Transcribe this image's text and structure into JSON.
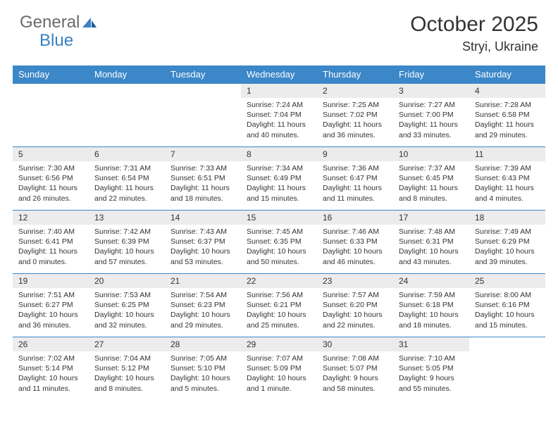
{
  "brand": {
    "part1": "General",
    "part2": "Blue"
  },
  "title": "October 2025",
  "location": "Stryi, Ukraine",
  "colors": {
    "header_bg": "#3b87c8",
    "header_fg": "#ffffff",
    "daynum_bg": "#ececec",
    "border": "#3b87c8",
    "text": "#333333",
    "logo_gray": "#6a6a6a",
    "logo_blue": "#3a7fc4",
    "page_bg": "#ffffff"
  },
  "typography": {
    "title_fontsize": 30,
    "location_fontsize": 18,
    "logo_fontsize": 24,
    "weekday_fontsize": 13,
    "daynum_fontsize": 12,
    "body_fontsize": 10.5
  },
  "weekdays": [
    "Sunday",
    "Monday",
    "Tuesday",
    "Wednesday",
    "Thursday",
    "Friday",
    "Saturday"
  ],
  "weeks": [
    [
      {
        "n": "",
        "sr": "",
        "ss": "",
        "dl": ""
      },
      {
        "n": "",
        "sr": "",
        "ss": "",
        "dl": ""
      },
      {
        "n": "",
        "sr": "",
        "ss": "",
        "dl": ""
      },
      {
        "n": "1",
        "sr": "7:24 AM",
        "ss": "7:04 PM",
        "dl": "11 hours and 40 minutes."
      },
      {
        "n": "2",
        "sr": "7:25 AM",
        "ss": "7:02 PM",
        "dl": "11 hours and 36 minutes."
      },
      {
        "n": "3",
        "sr": "7:27 AM",
        "ss": "7:00 PM",
        "dl": "11 hours and 33 minutes."
      },
      {
        "n": "4",
        "sr": "7:28 AM",
        "ss": "6:58 PM",
        "dl": "11 hours and 29 minutes."
      }
    ],
    [
      {
        "n": "5",
        "sr": "7:30 AM",
        "ss": "6:56 PM",
        "dl": "11 hours and 26 minutes."
      },
      {
        "n": "6",
        "sr": "7:31 AM",
        "ss": "6:54 PM",
        "dl": "11 hours and 22 minutes."
      },
      {
        "n": "7",
        "sr": "7:33 AM",
        "ss": "6:51 PM",
        "dl": "11 hours and 18 minutes."
      },
      {
        "n": "8",
        "sr": "7:34 AM",
        "ss": "6:49 PM",
        "dl": "11 hours and 15 minutes."
      },
      {
        "n": "9",
        "sr": "7:36 AM",
        "ss": "6:47 PM",
        "dl": "11 hours and 11 minutes."
      },
      {
        "n": "10",
        "sr": "7:37 AM",
        "ss": "6:45 PM",
        "dl": "11 hours and 8 minutes."
      },
      {
        "n": "11",
        "sr": "7:39 AM",
        "ss": "6:43 PM",
        "dl": "11 hours and 4 minutes."
      }
    ],
    [
      {
        "n": "12",
        "sr": "7:40 AM",
        "ss": "6:41 PM",
        "dl": "11 hours and 0 minutes."
      },
      {
        "n": "13",
        "sr": "7:42 AM",
        "ss": "6:39 PM",
        "dl": "10 hours and 57 minutes."
      },
      {
        "n": "14",
        "sr": "7:43 AM",
        "ss": "6:37 PM",
        "dl": "10 hours and 53 minutes."
      },
      {
        "n": "15",
        "sr": "7:45 AM",
        "ss": "6:35 PM",
        "dl": "10 hours and 50 minutes."
      },
      {
        "n": "16",
        "sr": "7:46 AM",
        "ss": "6:33 PM",
        "dl": "10 hours and 46 minutes."
      },
      {
        "n": "17",
        "sr": "7:48 AM",
        "ss": "6:31 PM",
        "dl": "10 hours and 43 minutes."
      },
      {
        "n": "18",
        "sr": "7:49 AM",
        "ss": "6:29 PM",
        "dl": "10 hours and 39 minutes."
      }
    ],
    [
      {
        "n": "19",
        "sr": "7:51 AM",
        "ss": "6:27 PM",
        "dl": "10 hours and 36 minutes."
      },
      {
        "n": "20",
        "sr": "7:53 AM",
        "ss": "6:25 PM",
        "dl": "10 hours and 32 minutes."
      },
      {
        "n": "21",
        "sr": "7:54 AM",
        "ss": "6:23 PM",
        "dl": "10 hours and 29 minutes."
      },
      {
        "n": "22",
        "sr": "7:56 AM",
        "ss": "6:21 PM",
        "dl": "10 hours and 25 minutes."
      },
      {
        "n": "23",
        "sr": "7:57 AM",
        "ss": "6:20 PM",
        "dl": "10 hours and 22 minutes."
      },
      {
        "n": "24",
        "sr": "7:59 AM",
        "ss": "6:18 PM",
        "dl": "10 hours and 18 minutes."
      },
      {
        "n": "25",
        "sr": "8:00 AM",
        "ss": "6:16 PM",
        "dl": "10 hours and 15 minutes."
      }
    ],
    [
      {
        "n": "26",
        "sr": "7:02 AM",
        "ss": "5:14 PM",
        "dl": "10 hours and 11 minutes."
      },
      {
        "n": "27",
        "sr": "7:04 AM",
        "ss": "5:12 PM",
        "dl": "10 hours and 8 minutes."
      },
      {
        "n": "28",
        "sr": "7:05 AM",
        "ss": "5:10 PM",
        "dl": "10 hours and 5 minutes."
      },
      {
        "n": "29",
        "sr": "7:07 AM",
        "ss": "5:09 PM",
        "dl": "10 hours and 1 minute."
      },
      {
        "n": "30",
        "sr": "7:08 AM",
        "ss": "5:07 PM",
        "dl": "9 hours and 58 minutes."
      },
      {
        "n": "31",
        "sr": "7:10 AM",
        "ss": "5:05 PM",
        "dl": "9 hours and 55 minutes."
      },
      {
        "n": "",
        "sr": "",
        "ss": "",
        "dl": ""
      }
    ]
  ],
  "labels": {
    "sunrise": "Sunrise:",
    "sunset": "Sunset:",
    "daylight": "Daylight:"
  }
}
